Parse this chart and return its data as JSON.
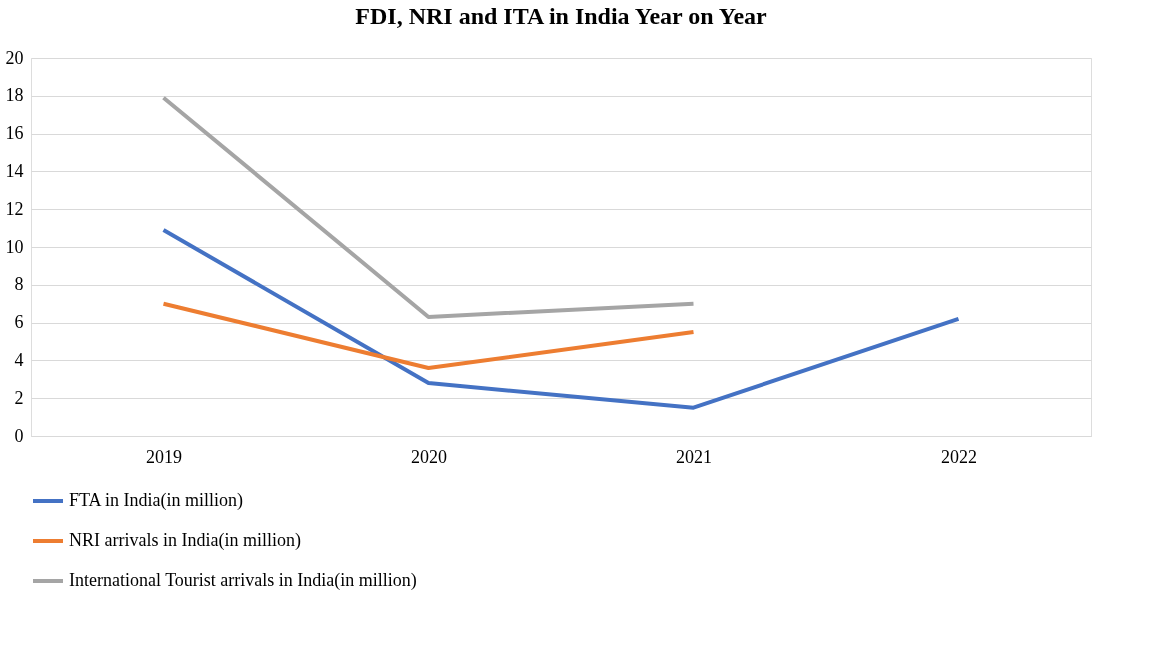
{
  "chart_data": {
    "type": "line",
    "title": "FDI, NRI and ITA in India Year on Year",
    "categories": [
      "2019",
      "2020",
      "2021",
      "2022"
    ],
    "series": [
      {
        "name": "FTA in India(in million)",
        "color": "#4472c4",
        "values": [
          10.9,
          2.8,
          1.5,
          6.2
        ]
      },
      {
        "name": "NRI arrivals in India(in million)",
        "color": "#ed7d31",
        "values": [
          7.0,
          3.6,
          5.5,
          null
        ]
      },
      {
        "name": "International Tourist arrivals in India(in million)",
        "color": "#a5a5a5",
        "values": [
          17.9,
          6.3,
          7.0,
          null
        ]
      }
    ],
    "ylim": [
      0,
      20
    ],
    "yticks": [
      0,
      2,
      4,
      6,
      8,
      10,
      12,
      14,
      16,
      18,
      20
    ],
    "grid": "y",
    "legend": "bottom",
    "marker": "none",
    "line_style": "solid"
  }
}
